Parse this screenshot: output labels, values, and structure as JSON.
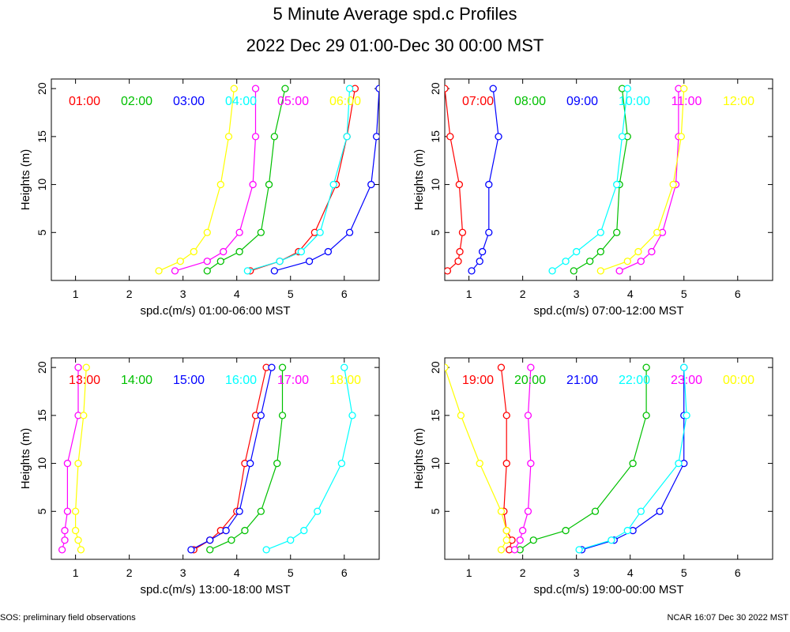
{
  "title": "5 Minute Average spd.c Profiles",
  "subtitle": "2022 Dec 29 01:00-Dec 30 00:00 MST",
  "footer_left": "SOS: preliminary field observations",
  "footer_right": "NCAR 16:07 Dec 30 2022 MST",
  "colors": [
    "#ff0000",
    "#00c000",
    "#0000ff",
    "#00ffff",
    "#ff00ff",
    "#ffff00"
  ],
  "chart_data": [
    {
      "type": "line",
      "xlabel": "spd.c(m/s) 01:00-06:00 MST",
      "ylabel": "Heights (m)",
      "xlim": [
        0.55,
        6.65
      ],
      "ylim": [
        0,
        21
      ],
      "xticks": [
        1,
        2,
        3,
        4,
        5,
        6
      ],
      "yticks": [
        5,
        10,
        15,
        20
      ],
      "heights": [
        1,
        2,
        3,
        5,
        10,
        15,
        20
      ],
      "series": [
        {
          "name": "01:00",
          "values": [
            4.25,
            4.8,
            5.15,
            5.45,
            5.85,
            6.05,
            6.2
          ]
        },
        {
          "name": "02:00",
          "values": [
            3.45,
            3.7,
            4.05,
            4.45,
            4.6,
            4.7,
            4.9
          ]
        },
        {
          "name": "03:00",
          "values": [
            4.7,
            5.35,
            5.7,
            6.1,
            6.5,
            6.6,
            6.65
          ]
        },
        {
          "name": "04:00",
          "values": [
            4.2,
            4.8,
            5.2,
            5.55,
            5.8,
            6.05,
            6.1
          ]
        },
        {
          "name": "05:00",
          "values": [
            2.85,
            3.45,
            3.75,
            4.05,
            4.3,
            4.35,
            4.35
          ]
        },
        {
          "name": "06:00",
          "values": [
            2.55,
            2.95,
            3.2,
            3.45,
            3.7,
            3.85,
            3.95
          ]
        }
      ]
    },
    {
      "type": "line",
      "xlabel": "spd.c(m/s) 07:00-12:00 MST",
      "ylabel": "Heights (m)",
      "xlim": [
        0.55,
        6.65
      ],
      "ylim": [
        0,
        21
      ],
      "xticks": [
        1,
        2,
        3,
        4,
        5,
        6
      ],
      "yticks": [
        5,
        10,
        15,
        20
      ],
      "heights": [
        1,
        2,
        3,
        5,
        10,
        15,
        20
      ],
      "series": [
        {
          "name": "07:00",
          "values": [
            0.6,
            0.8,
            0.83,
            0.88,
            0.82,
            0.65,
            0.55
          ]
        },
        {
          "name": "08:00",
          "values": [
            2.95,
            3.25,
            3.45,
            3.75,
            3.8,
            3.95,
            3.85
          ]
        },
        {
          "name": "09:00",
          "values": [
            1.05,
            1.2,
            1.25,
            1.37,
            1.37,
            1.55,
            1.45
          ]
        },
        {
          "name": "10:00",
          "values": [
            2.55,
            2.8,
            3.0,
            3.45,
            3.75,
            3.85,
            3.95
          ]
        },
        {
          "name": "11:00",
          "values": [
            3.8,
            4.2,
            4.4,
            4.6,
            4.85,
            4.9,
            4.9
          ]
        },
        {
          "name": "12:00",
          "values": [
            3.45,
            3.95,
            4.15,
            4.5,
            4.8,
            4.95,
            5.0
          ]
        }
      ]
    },
    {
      "type": "line",
      "xlabel": "spd.c(m/s) 13:00-18:00 MST",
      "ylabel": "Heights (m)",
      "xlim": [
        0.55,
        6.65
      ],
      "ylim": [
        0,
        21
      ],
      "xticks": [
        1,
        2,
        3,
        4,
        5,
        6
      ],
      "yticks": [
        5,
        10,
        15,
        20
      ],
      "heights": [
        1,
        2,
        3,
        5,
        10,
        15,
        20
      ],
      "series": [
        {
          "name": "13:00",
          "values": [
            3.2,
            3.5,
            3.7,
            4.0,
            4.15,
            4.35,
            4.55
          ]
        },
        {
          "name": "14:00",
          "values": [
            3.5,
            3.9,
            4.15,
            4.45,
            4.75,
            4.85,
            4.85
          ]
        },
        {
          "name": "15:00",
          "values": [
            3.15,
            3.5,
            3.8,
            4.05,
            4.25,
            4.45,
            4.65
          ]
        },
        {
          "name": "16:00",
          "values": [
            4.55,
            5.0,
            5.25,
            5.5,
            5.95,
            6.15,
            6.0
          ]
        },
        {
          "name": "17:00",
          "values": [
            0.75,
            0.8,
            0.8,
            0.85,
            0.85,
            1.05,
            1.05
          ]
        },
        {
          "name": "18:00",
          "values": [
            1.1,
            1.05,
            1.0,
            1.0,
            1.05,
            1.15,
            1.2
          ]
        }
      ]
    },
    {
      "type": "line",
      "xlabel": "spd.c(m/s) 19:00-00:00 MST",
      "ylabel": "Heights (m)",
      "xlim": [
        0.55,
        6.65
      ],
      "ylim": [
        0,
        21
      ],
      "xticks": [
        1,
        2,
        3,
        4,
        5,
        6
      ],
      "yticks": [
        5,
        10,
        15,
        20
      ],
      "heights": [
        1,
        2,
        3,
        5,
        10,
        15,
        20
      ],
      "series": [
        {
          "name": "19:00",
          "values": [
            1.75,
            1.8,
            1.7,
            1.65,
            1.7,
            1.7,
            1.6
          ]
        },
        {
          "name": "20:00",
          "values": [
            1.95,
            2.2,
            2.8,
            3.35,
            4.05,
            4.3,
            4.3
          ]
        },
        {
          "name": "21:00",
          "values": [
            3.1,
            3.7,
            4.05,
            4.55,
            5.0,
            5.0,
            5.0
          ]
        },
        {
          "name": "22:00",
          "values": [
            3.05,
            3.65,
            3.95,
            4.2,
            4.9,
            5.05,
            5.0
          ]
        },
        {
          "name": "23:00",
          "values": [
            1.85,
            1.95,
            2.0,
            2.1,
            2.15,
            2.1,
            2.15
          ]
        },
        {
          "name": "00:00",
          "values": [
            1.6,
            1.7,
            1.7,
            1.6,
            1.2,
            0.85,
            0.55
          ]
        }
      ]
    }
  ]
}
